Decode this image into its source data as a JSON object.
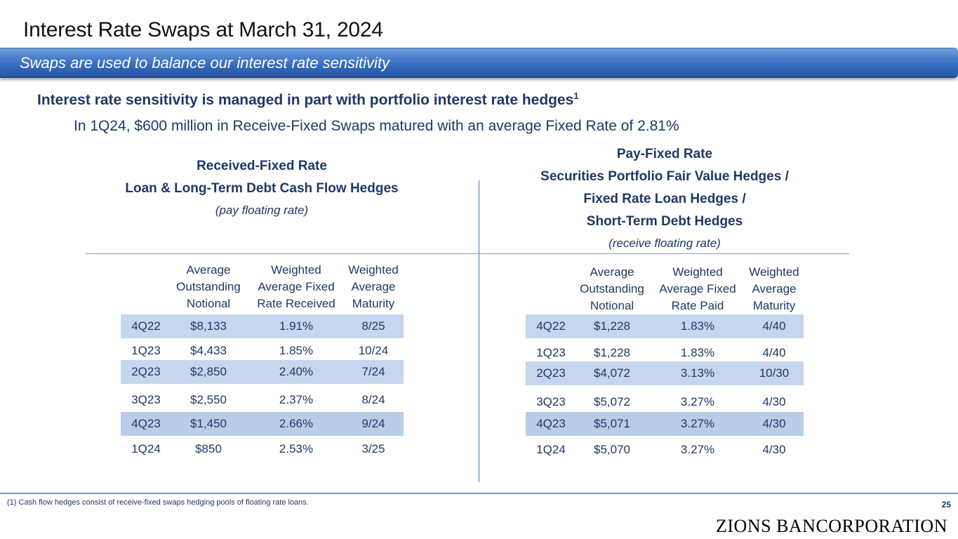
{
  "title": "Interest Rate Swaps at March 31, 2024",
  "banner": "Swaps are used to balance our interest rate sensitivity",
  "headline": {
    "text": "Interest rate sensitivity is managed in part with portfolio interest rate hedges",
    "footnote_ref": "1"
  },
  "subline": "In 1Q24, $600 million in Receive-Fixed Swaps matured with an average Fixed Rate of 2.81%",
  "left_section": {
    "heading_lines": [
      "Received-Fixed Rate",
      "Loan & Long-Term Debt Cash Flow Hedges"
    ],
    "note": "(pay floating rate)",
    "columns": [
      [
        "Average",
        "Outstanding",
        "Notional"
      ],
      [
        "Weighted",
        "Average Fixed",
        "Rate Received"
      ],
      [
        "Weighted",
        "Average",
        "Maturity"
      ]
    ],
    "rows": [
      {
        "period": "4Q22",
        "notional": "$8,133",
        "rate": "1.91%",
        "maturity": "8/25"
      },
      {
        "period": "1Q23",
        "notional": "$4,433",
        "rate": "1.85%",
        "maturity": "10/24"
      },
      {
        "period": "2Q23",
        "notional": "$2,850",
        "rate": "2.40%",
        "maturity": "7/24"
      },
      {
        "period": "3Q23",
        "notional": "$2,550",
        "rate": "2.37%",
        "maturity": "8/24"
      },
      {
        "period": "4Q23",
        "notional": "$1,450",
        "rate": "2.66%",
        "maturity": "9/24"
      },
      {
        "period": "1Q24",
        "notional": "$850",
        "rate": "2.53%",
        "maturity": "3/25"
      }
    ]
  },
  "right_section": {
    "heading_lines": [
      "Pay-Fixed Rate",
      "Securities Portfolio Fair Value Hedges /",
      "Fixed Rate Loan Hedges /",
      "Short-Term Debt Hedges"
    ],
    "note": "(receive floating rate)",
    "columns": [
      [
        "Average",
        "Outstanding",
        "Notional"
      ],
      [
        "Weighted",
        "Average Fixed",
        "Rate Paid"
      ],
      [
        "Weighted",
        "Average",
        "Maturity"
      ]
    ],
    "rows": [
      {
        "period": "4Q22",
        "notional": "$1,228",
        "rate": "1.83%",
        "maturity": "4/40"
      },
      {
        "period": "1Q23",
        "notional": "$1,228",
        "rate": "1.83%",
        "maturity": "4/40"
      },
      {
        "period": "2Q23",
        "notional": "$4,072",
        "rate": "3.13%",
        "maturity": "10/30"
      },
      {
        "period": "3Q23",
        "notional": "$5,072",
        "rate": "3.27%",
        "maturity": "4/30"
      },
      {
        "period": "4Q23",
        "notional": "$5,071",
        "rate": "3.27%",
        "maturity": "4/30"
      },
      {
        "period": "1Q24",
        "notional": "$5,070",
        "rate": "3.27%",
        "maturity": "4/30"
      }
    ]
  },
  "footnote": "(1)  Cash flow hedges consist of receive-fixed swaps hedging pools of floating rate loans.",
  "page_number": "25",
  "logo": "ZIONS BANCORPORATION"
}
